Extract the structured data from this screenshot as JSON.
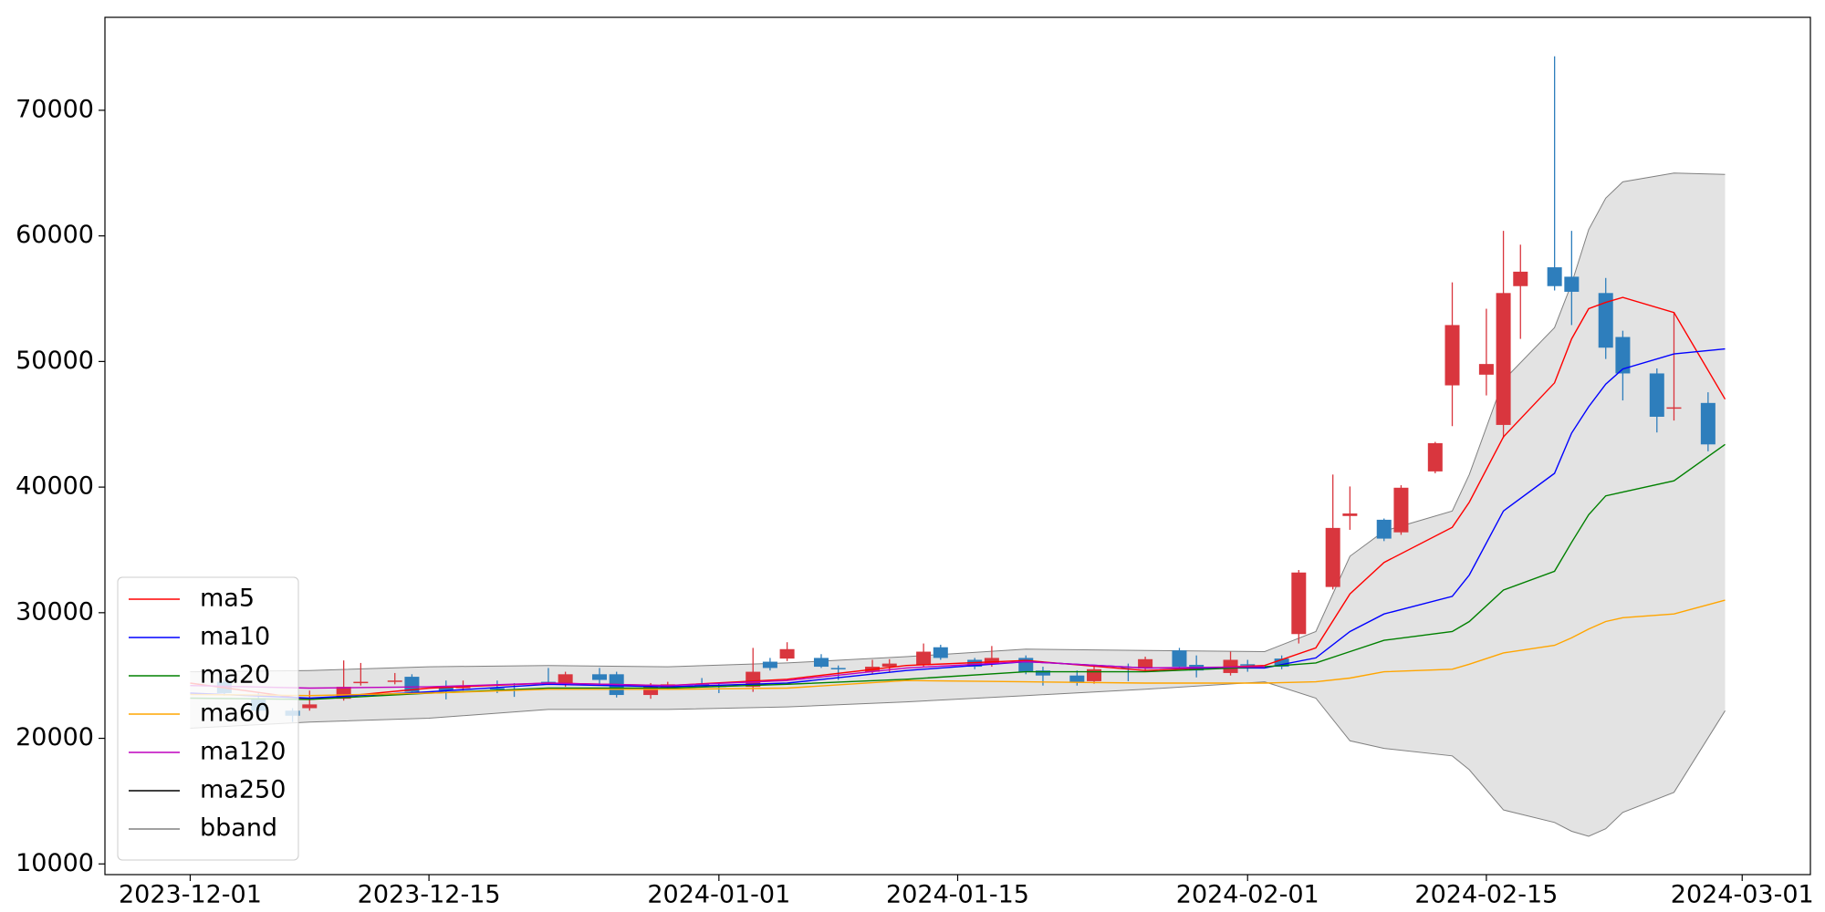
{
  "chart_data": {
    "type": "candlestick",
    "x": [
      "2023-12-03",
      "2023-12-05",
      "2023-12-07",
      "2023-12-08",
      "2023-12-10",
      "2023-12-11",
      "2023-12-13",
      "2023-12-14",
      "2023-12-16",
      "2023-12-17",
      "2023-12-19",
      "2023-12-20",
      "2023-12-22",
      "2023-12-23",
      "2023-12-25",
      "2023-12-26",
      "2023-12-28",
      "2023-12-29",
      "2023-12-31",
      "2024-01-01",
      "2024-01-03",
      "2024-01-04",
      "2024-01-05",
      "2024-01-07",
      "2024-01-08",
      "2024-01-10",
      "2024-01-11",
      "2024-01-13",
      "2024-01-14",
      "2024-01-16",
      "2024-01-17",
      "2024-01-19",
      "2024-01-20",
      "2024-01-22",
      "2024-01-23",
      "2024-01-25",
      "2024-01-26",
      "2024-01-28",
      "2024-01-29",
      "2024-01-31",
      "2024-02-01",
      "2024-02-03",
      "2024-02-04",
      "2024-02-06",
      "2024-02-07",
      "2024-02-09",
      "2024-02-10",
      "2024-02-12",
      "2024-02-13",
      "2024-02-15",
      "2024-02-16",
      "2024-02-17",
      "2024-02-19",
      "2024-02-20",
      "2024-02-22",
      "2024-02-23",
      "2024-02-25",
      "2024-02-26",
      "2024-02-28"
    ],
    "open": [
      24500,
      23200,
      22200,
      22400,
      23150,
      24400,
      24500,
      24900,
      24100,
      24000,
      24000,
      23900,
      24500,
      24350,
      25100,
      25100,
      23450,
      24050,
      24300,
      24200,
      24100,
      26100,
      26350,
      26400,
      25600,
      25300,
      25700,
      25850,
      27250,
      26250,
      25900,
      26400,
      25400,
      25000,
      24550,
      25700,
      25550,
      27000,
      25850,
      25200,
      25900,
      26350,
      28300,
      32050,
      37700,
      37400,
      36400,
      41250,
      48100,
      48950,
      44950,
      56000,
      57500,
      56750,
      55450,
      51950,
      49050,
      46300,
      46700
    ],
    "high": [
      24700,
      23600,
      22400,
      23800,
      26200,
      26000,
      25200,
      25100,
      24600,
      24600,
      24600,
      24400,
      25600,
      25300,
      25600,
      25300,
      24400,
      24500,
      24800,
      24400,
      27200,
      26400,
      27650,
      26700,
      25800,
      26250,
      26300,
      27550,
      27450,
      26400,
      27350,
      26600,
      25700,
      25400,
      25800,
      25950,
      26500,
      27200,
      26600,
      26900,
      26250,
      26600,
      33400,
      41000,
      40050,
      37500,
      40150,
      43600,
      56300,
      54200,
      60400,
      59300,
      74300,
      60400,
      56650,
      52450,
      49450,
      53950,
      47550
    ],
    "low": [
      23400,
      22000,
      21300,
      22200,
      23000,
      24200,
      24300,
      23500,
      23100,
      23800,
      23600,
      23300,
      24300,
      24100,
      24350,
      23250,
      23150,
      23900,
      24200,
      23600,
      23700,
      25400,
      26150,
      25600,
      24650,
      25100,
      25300,
      25650,
      26250,
      25500,
      25700,
      25100,
      24200,
      24200,
      24350,
      24550,
      25400,
      25500,
      24850,
      25000,
      25300,
      25500,
      27550,
      31850,
      36600,
      35700,
      36200,
      41100,
      44850,
      47300,
      43900,
      51800,
      55650,
      52900,
      50200,
      46900,
      44350,
      45300,
      42850
    ],
    "close": [
      23600,
      22200,
      21800,
      22700,
      24100,
      24500,
      24600,
      23700,
      23800,
      24100,
      23900,
      23800,
      24400,
      25100,
      24650,
      23450,
      24100,
      24300,
      24200,
      24100,
      25300,
      25600,
      27100,
      25700,
      25500,
      25700,
      25950,
      26900,
      26400,
      25700,
      26400,
      25300,
      25000,
      24450,
      25500,
      25600,
      26300,
      25700,
      25400,
      26250,
      25800,
      25700,
      33200,
      36750,
      37900,
      35900,
      39950,
      43500,
      52900,
      49800,
      55450,
      57150,
      56000,
      55550,
      51100,
      49050,
      45600,
      46350,
      43400
    ],
    "up_color": "#d9363e",
    "down_color": "#2e7ebc",
    "lines": {
      "x": [
        "2023-12-01",
        "2023-12-08",
        "2023-12-15",
        "2023-12-22",
        "2023-12-29",
        "2024-01-05",
        "2024-01-12",
        "2024-01-19",
        "2024-01-26",
        "2024-02-02",
        "2024-02-05",
        "2024-02-07",
        "2024-02-09",
        "2024-02-13",
        "2024-02-14",
        "2024-02-16",
        "2024-02-19",
        "2024-02-20",
        "2024-02-21",
        "2024-02-22",
        "2024-02-23",
        "2024-02-26",
        "2024-02-29"
      ],
      "series": [
        {
          "name": "ma5",
          "color": "#ff0000",
          "values": [
            24400,
            23100,
            24000,
            24400,
            24200,
            24700,
            25800,
            26200,
            25400,
            25800,
            27200,
            31500,
            34000,
            36800,
            38800,
            44000,
            48300,
            51800,
            54200,
            54700,
            55100,
            53900,
            47000
          ]
        },
        {
          "name": "ma10",
          "color": "#0000ff",
          "values": [
            23600,
            23200,
            23700,
            24300,
            24100,
            24400,
            25400,
            26100,
            25600,
            25600,
            26400,
            28500,
            29900,
            31300,
            33000,
            38100,
            41100,
            44300,
            46400,
            48200,
            49400,
            50600,
            51000
          ]
        },
        {
          "name": "ma20",
          "color": "#008000",
          "values": [
            23200,
            23100,
            23600,
            24000,
            24000,
            24300,
            24700,
            25300,
            25300,
            25700,
            26000,
            26900,
            27800,
            28500,
            29300,
            31800,
            33300,
            35600,
            37800,
            39300,
            39600,
            40500,
            43400
          ]
        },
        {
          "name": "ma60",
          "color": "#ffa500",
          "values": [
            23500,
            23400,
            23600,
            23900,
            23900,
            24000,
            24600,
            24500,
            24400,
            24400,
            24500,
            24800,
            25300,
            25500,
            25900,
            26800,
            27400,
            28000,
            28700,
            29300,
            29600,
            29900,
            31000
          ]
        },
        {
          "name": "ma120",
          "color": "#bf00bf",
          "values": [
            24200,
            24000,
            24100,
            24400,
            24200,
            24600,
            25600,
            26100,
            25600,
            25700,
            null,
            null,
            null,
            null,
            null,
            null,
            null,
            null,
            null,
            null,
            null,
            null,
            null
          ]
        },
        {
          "name": "ma250",
          "color": "#000000",
          "values": [
            null,
            null,
            null,
            null,
            null,
            null,
            null,
            null,
            null,
            null,
            null,
            null,
            null,
            null,
            null,
            null,
            null,
            null,
            null,
            null,
            null,
            null,
            null
          ]
        }
      ]
    },
    "bband": {
      "name": "bband",
      "color": "#808080",
      "fill": "#e3e3e3",
      "upper": [
        25300,
        25400,
        25700,
        25800,
        25700,
        26000,
        26500,
        27100,
        27000,
        26900,
        28500,
        34500,
        36500,
        38100,
        41000,
        48500,
        52700,
        56200,
        60500,
        63000,
        64300,
        65000,
        64900
      ],
      "lower": [
        20800,
        21300,
        21600,
        22300,
        22300,
        22500,
        22900,
        23400,
        23900,
        24500,
        23200,
        19800,
        19200,
        18600,
        17500,
        14300,
        13300,
        12600,
        12200,
        12800,
        14100,
        15700,
        22200
      ]
    },
    "xlim": [
      "2023-11-26",
      "2024-03-05"
    ],
    "xticks": [
      "2023-12-01",
      "2023-12-15",
      "2024-01-01",
      "2024-01-15",
      "2024-02-01",
      "2024-02-15",
      "2024-03-01"
    ],
    "ylim": [
      9150,
      77400
    ],
    "yticks": [
      10000,
      20000,
      30000,
      40000,
      50000,
      60000,
      70000
    ],
    "legend": "lower left"
  }
}
